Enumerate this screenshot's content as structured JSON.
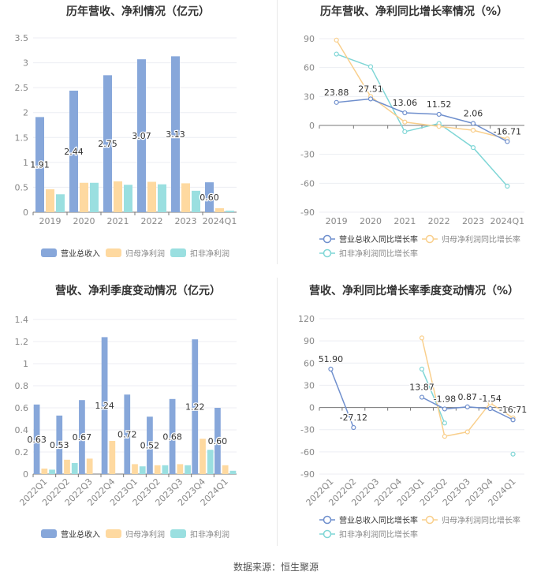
{
  "source": "数据来源：恒生聚源",
  "colors": {
    "revenue": "#87a7da",
    "net": "#fed9a0",
    "deducted": "#9adfe0",
    "line_revenue": "#6f8fcd",
    "line_net": "#f9cf8c",
    "line_deducted": "#7fd6d6"
  },
  "chart_data": [
    {
      "type": "bar",
      "title": "历年营收、净利情况（亿元）",
      "categories": [
        "2019",
        "2020",
        "2021",
        "2022",
        "2023",
        "2024Q1"
      ],
      "ylim": [
        0,
        3.5
      ],
      "yticks": [
        "0",
        "0.5",
        "1",
        "1.5",
        "2",
        "2.5",
        "3",
        "3.5"
      ],
      "grid": true,
      "legend": "bottom",
      "series": [
        {
          "name": "营业总收入",
          "values": [
            1.91,
            2.44,
            2.75,
            3.07,
            3.13,
            0.6
          ],
          "labels": [
            "1.91",
            "2.44",
            "2.75",
            "3.07",
            "3.13",
            "0.60"
          ]
        },
        {
          "name": "归母净利润",
          "values": [
            0.46,
            0.59,
            0.62,
            0.61,
            0.58,
            0.08
          ]
        },
        {
          "name": "扣非净利润",
          "values": [
            0.36,
            0.59,
            0.55,
            0.56,
            0.43,
            0.03
          ]
        }
      ]
    },
    {
      "type": "line",
      "title": "历年营收、净利同比增长率情况（%）",
      "categories": [
        "2019",
        "2020",
        "2021",
        "2022",
        "2023",
        "2024Q1"
      ],
      "ylim": [
        -90,
        90
      ],
      "yticks": [
        "-90",
        "-60",
        "-30",
        "0",
        "30",
        "60",
        "90"
      ],
      "grid": true,
      "legend": "bottom",
      "series": [
        {
          "name": "营业总收入同比增长率",
          "values": [
            23.88,
            27.51,
            13.06,
            11.52,
            2.06,
            -16.71
          ],
          "labels": [
            "23.88",
            "27.51",
            "13.06",
            "11.52",
            "2.06",
            "-16.71"
          ]
        },
        {
          "name": "归母净利润同比增长率",
          "values": [
            88.5,
            30,
            3.5,
            -1,
            -5,
            -14
          ]
        },
        {
          "name": "扣非净利润同比增长率",
          "values": [
            74,
            61,
            -6.5,
            2,
            -23,
            -63
          ]
        }
      ]
    },
    {
      "type": "bar",
      "title": "营收、净利季度变动情况（亿元）",
      "categories": [
        "2022Q1",
        "2022Q2",
        "2022Q3",
        "2022Q4",
        "2023Q1",
        "2023Q2",
        "2023Q3",
        "2023Q4",
        "2024Q1"
      ],
      "ylim": [
        0,
        1.4
      ],
      "yticks": [
        "0",
        "0.2",
        "0.4",
        "0.6",
        "0.8",
        "1",
        "1.2",
        "1.4"
      ],
      "grid": true,
      "legend": "bottom",
      "series": [
        {
          "name": "营业总收入",
          "values": [
            0.63,
            0.53,
            0.67,
            1.24,
            0.72,
            0.52,
            0.68,
            1.22,
            0.6
          ],
          "labels": [
            "0.63",
            "0.53",
            "0.67",
            "1.24",
            "0.72",
            "0.52",
            "0.68",
            "1.22",
            "0.60"
          ]
        },
        {
          "name": "归母净利润",
          "values": [
            0.05,
            0.13,
            0.14,
            0.3,
            0.09,
            0.08,
            0.09,
            0.32,
            0.08
          ]
        },
        {
          "name": "扣非净利润",
          "values": [
            0.04,
            0.1,
            null,
            null,
            0.07,
            0.08,
            0.08,
            0.22,
            0.03
          ]
        }
      ]
    },
    {
      "type": "line",
      "title": "营收、净利同比增长率季度变动情况（%）",
      "categories": [
        "2022Q1",
        "2022Q2",
        "2022Q3",
        "2022Q4",
        "2023Q1",
        "2023Q2",
        "2023Q3",
        "2023Q4",
        "2024Q1"
      ],
      "ylim": [
        -90,
        120
      ],
      "yticks": [
        "-90",
        "-60",
        "-30",
        "0",
        "30",
        "60",
        "90",
        "120"
      ],
      "grid": true,
      "legend": "bottom",
      "series": [
        {
          "name": "营业总收入同比增长率",
          "values": [
            51.9,
            -27.12,
            null,
            null,
            13.87,
            -1.98,
            0.87,
            -1.54,
            -16.71
          ],
          "labels": [
            "51.90",
            "-27.12",
            "",
            "",
            "13.87",
            "-1.98",
            "0.87",
            "-1.54",
            "-16.71"
          ]
        },
        {
          "name": "归母净利润同比增长率",
          "values": [
            null,
            null,
            null,
            null,
            94,
            -39,
            -33,
            6,
            -14
          ]
        },
        {
          "name": "扣非净利润同比增长率",
          "values": [
            null,
            null,
            null,
            null,
            52,
            -21,
            null,
            null,
            -63
          ]
        }
      ]
    }
  ]
}
